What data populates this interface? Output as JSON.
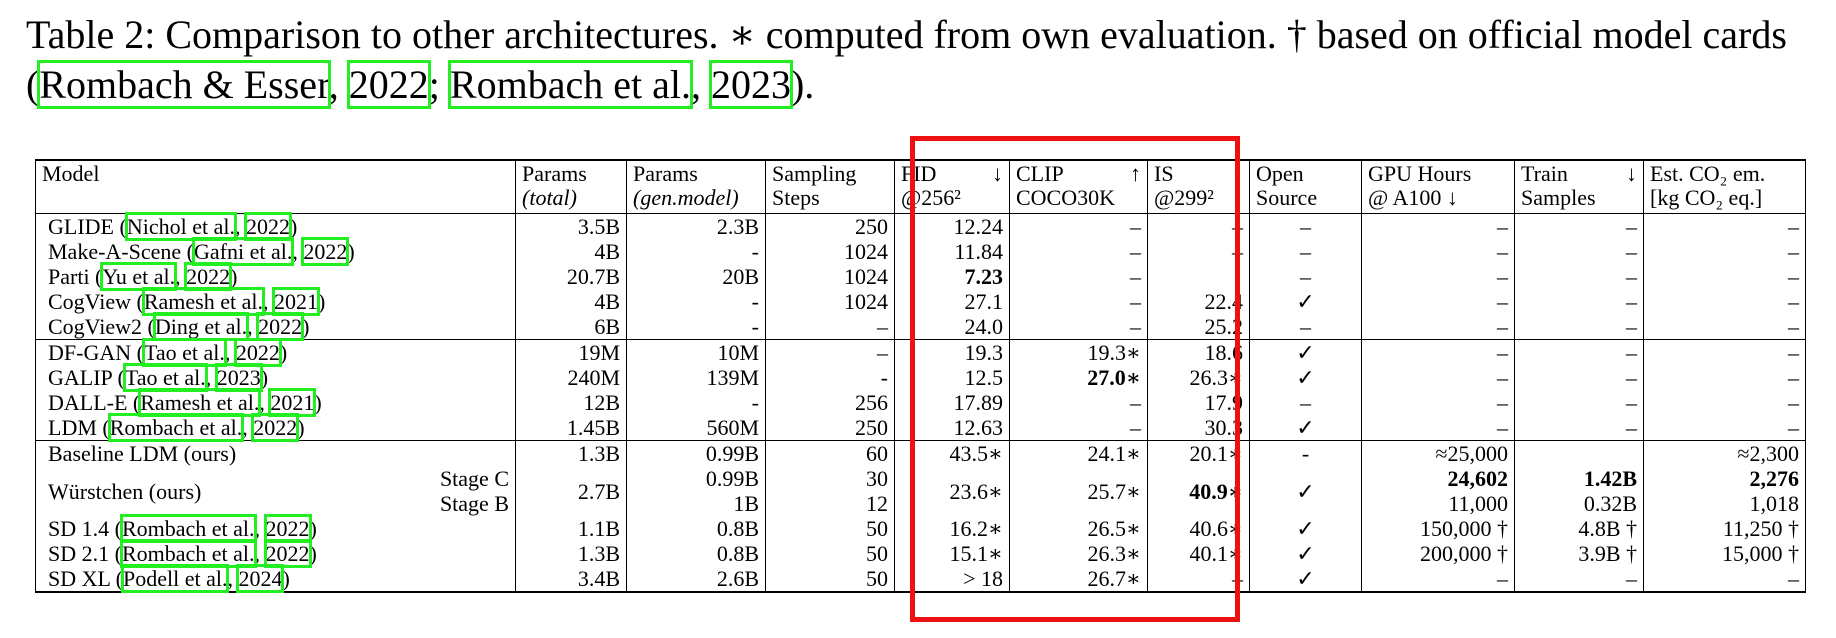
{
  "caption": [
    "Table 2: Comparison to other architectures. ∗ computed from own evaluation. † based on official model cards (",
    "Rombach & Esser",
    ", ",
    "2022",
    "; ",
    "Rombach et al.",
    ", ",
    "2023",
    ")."
  ],
  "table": {
    "header": [
      {
        "lines": [
          "Model"
        ]
      },
      {
        "lines": [
          "Params",
          "(total)"
        ]
      },
      {
        "lines": [
          "Params",
          "(gen.model)"
        ]
      },
      {
        "lines": [
          "Sampling",
          "Steps"
        ]
      },
      {
        "lines": [
          "FID",
          "@256²"
        ],
        "arrow": "↓"
      },
      {
        "lines": [
          "CLIP",
          "COCO30K"
        ],
        "arrow": "↑"
      },
      {
        "lines": [
          "IS",
          "@299²"
        ],
        "arrow": "↑"
      },
      {
        "lines": [
          "Open",
          "Source"
        ]
      },
      {
        "lines": [
          "GPU Hours",
          "@ A100 ↓"
        ]
      },
      {
        "lines": [
          "Train",
          "Samples"
        ],
        "arrow": "↓"
      },
      {
        "lines": [
          "Est. CO₂ em.",
          "[kg CO₂ eq.]"
        ]
      }
    ],
    "groups": [
      [
        {
          "model": [
            "GLIDE (",
            "Nichol et al.",
            ", ",
            "2022",
            ")"
          ],
          "cells": [
            "3.5B",
            "2.3B",
            "250",
            "12.24",
            "–",
            "–",
            "–",
            "–",
            "–",
            "–"
          ]
        },
        {
          "model": [
            "Make-A-Scene (",
            "Gafni et al.",
            ", ",
            "2022",
            ")"
          ],
          "cells": [
            "4B",
            "-",
            "1024",
            "11.84",
            "–",
            "–",
            "–",
            "–",
            "–",
            "–"
          ]
        },
        {
          "model": [
            "Parti (",
            "Yu et al.",
            ", ",
            "2022",
            ")"
          ],
          "cells": [
            "20.7B",
            "20B",
            "1024",
            {
              "text": "7.23",
              "bold": true
            },
            "–",
            null,
            "–",
            "–",
            "–",
            "–"
          ]
        },
        {
          "model": [
            "CogView (",
            "Ramesh et al.",
            ", ",
            "2021",
            ")"
          ],
          "cells": [
            "4B",
            "-",
            "1024",
            "27.1",
            "–",
            "22.4",
            "✓",
            "–",
            "–",
            "–"
          ]
        },
        {
          "model": [
            "CogView2 (",
            "Ding et al.",
            ", ",
            "2022",
            ")"
          ],
          "cells": [
            "6B",
            "-",
            "–",
            "24.0",
            "–",
            "25.2",
            "–",
            "–",
            "–",
            "–"
          ]
        }
      ],
      [
        {
          "model": [
            "DF-GAN (",
            "Tao et al.",
            ", ",
            "2022",
            ")"
          ],
          "cells": [
            "19M",
            "10M",
            "–",
            "19.3",
            "19.3∗",
            "18.6",
            "✓",
            "–",
            "–",
            "–"
          ]
        },
        {
          "model": [
            "GALIP (",
            "Tao et al.",
            ", ",
            "2023",
            ")"
          ],
          "cells": [
            "240M",
            "139M",
            "-",
            "12.5",
            {
              "text": "27.0∗",
              "bold": true
            },
            "26.3∗",
            "✓",
            "–",
            "–",
            "–"
          ]
        },
        {
          "model": [
            "DALL-E (",
            "Ramesh et al.",
            ", ",
            "2021",
            ")"
          ],
          "cells": [
            "12B",
            "-",
            "256",
            "17.89",
            "–",
            "17.9",
            "–",
            "–",
            "–",
            "–"
          ]
        },
        {
          "model": [
            "LDM (",
            "Rombach et al.",
            ", ",
            "2022",
            ")"
          ],
          "cells": [
            "1.45B",
            "560M",
            "250",
            "12.63",
            "–",
            "30.3",
            "✓",
            "–",
            "–",
            "–"
          ]
        }
      ],
      [
        {
          "model": "Baseline LDM (ours)",
          "cells": [
            "1.3B",
            "0.99B",
            "60",
            "43.5∗",
            "24.1∗",
            "20.1∗",
            "-",
            "≈25,000",
            null,
            "≈2,300"
          ]
        },
        {
          "model": "Würstchen (ours)",
          "stage": [
            "Stage C",
            "Stage B"
          ],
          "cells": [
            "2.7B",
            [
              "0.99B",
              "1B"
            ],
            [
              "30",
              "12"
            ],
            "23.6∗",
            "25.7∗",
            {
              "text": "40.9∗",
              "bold": true
            },
            "✓",
            [
              {
                "text": "24,602",
                "bold": true
              },
              "11,000"
            ],
            [
              {
                "text": "1.42B",
                "bold": true
              },
              "0.32B"
            ],
            [
              {
                "text": "2,276",
                "bold": true
              },
              "1,018"
            ]
          ]
        },
        {
          "model": [
            "SD 1.4 (",
            "Rombach et al.",
            ", ",
            "2022",
            ")"
          ],
          "cells": [
            "1.1B",
            "0.8B",
            "50",
            "16.2∗",
            "26.5∗",
            "40.6∗",
            "✓",
            "150,000 †",
            "4.8B †",
            "11,250 †"
          ]
        },
        {
          "model": [
            "SD 2.1 (",
            "Rombach et al.",
            ", ",
            "2022",
            ")"
          ],
          "cells": [
            "1.3B",
            "0.8B",
            "50",
            "15.1∗",
            "26.3∗",
            "40.1∗",
            "✓",
            "200,000 †",
            "3.9B †",
            "15,000 †"
          ]
        },
        {
          "model": [
            "SD XL (",
            "Podell et al.",
            ", ",
            "2024",
            ")"
          ],
          "cells": [
            "3.4B",
            "2.6B",
            "50",
            "> 18",
            "26.7∗",
            "–",
            "✓",
            "–",
            "–",
            "–"
          ]
        }
      ]
    ]
  }
}
